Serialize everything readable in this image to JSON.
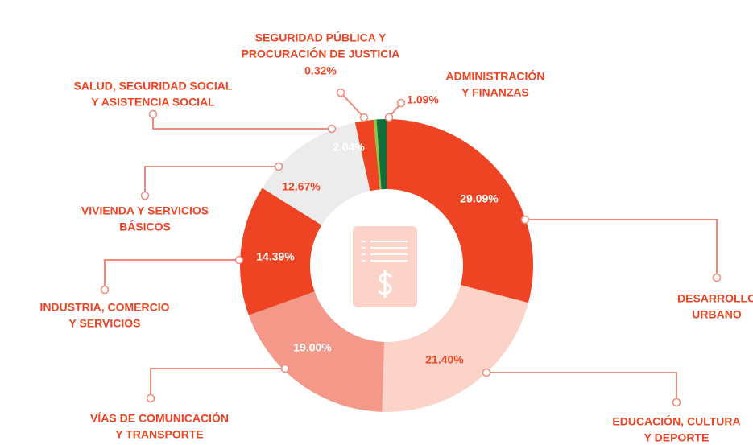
{
  "chart_data": {
    "type": "donut",
    "categories": [
      [
        "DESARROLLO",
        "URBANO"
      ],
      [
        "EDUCACIÓN, CULTURA",
        "Y DEPORTE"
      ],
      [
        "VÍAS DE COMUNICACIÓN",
        "Y TRANSPORTE"
      ],
      [
        "INDUSTRIA, COMERCIO",
        "Y SERVICIOS"
      ],
      [
        "VIVIENDA Y SERVICIOS",
        "BÁSICOS"
      ],
      [
        "SALUD, SEGURIDAD SOCIAL",
        "Y ASISTENCIA SOCIAL"
      ],
      [
        "SEGURIDAD PÚBLICA Y",
        "PROCURACIÓN DE JUSTICIA"
      ],
      [
        "ADMINISTRACIÓN",
        "Y FINANZAS"
      ]
    ],
    "values": [
      29.09,
      21.4,
      19.0,
      14.39,
      12.67,
      2.04,
      0.32,
      1.09
    ],
    "value_labels": [
      "29.09%",
      "21.40%",
      "19.00%",
      "14.39%",
      "12.67%",
      "2.04%",
      "0.32%",
      "1.09%"
    ],
    "colors": [
      "#ee4423",
      "#fcd3c8",
      "#f4998a",
      "#ee4423",
      "#ececec",
      "#ee4423",
      "#8dc63f",
      "#0f6e3a"
    ]
  }
}
